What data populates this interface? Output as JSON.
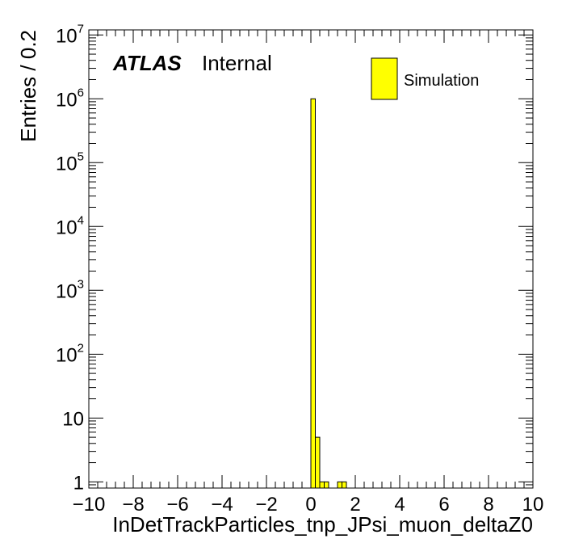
{
  "chart_data": {
    "type": "bar",
    "title": "",
    "xlabel": "InDetTrackParticles_tnp_JPsi_muon_deltaZ0",
    "ylabel": "Entries / 0.2",
    "xlim": [
      -10,
      10
    ],
    "ylim": [
      0.8,
      12000000
    ],
    "yscale": "log",
    "bin_width": 0.2,
    "x_ticks": [
      "−10",
      "−8",
      "−6",
      "−4",
      "−2",
      "0",
      "2",
      "4",
      "6",
      "8",
      "10"
    ],
    "x_tick_values": [
      -10,
      -8,
      -6,
      -4,
      -2,
      0,
      2,
      4,
      6,
      8,
      10
    ],
    "y_ticks": [
      {
        "value": 1,
        "base": "1",
        "exp": ""
      },
      {
        "value": 10,
        "base": "10",
        "exp": ""
      },
      {
        "value": 100,
        "base": "10",
        "exp": "2"
      },
      {
        "value": 1000,
        "base": "10",
        "exp": "3"
      },
      {
        "value": 10000,
        "base": "10",
        "exp": "4"
      },
      {
        "value": 100000,
        "base": "10",
        "exp": "5"
      },
      {
        "value": 1000000,
        "base": "10",
        "exp": "6"
      },
      {
        "value": 10000000,
        "base": "10",
        "exp": "7"
      }
    ],
    "bins": [
      {
        "low": 0.0,
        "high": 0.2,
        "value": 1000000
      },
      {
        "low": 0.2,
        "high": 0.4,
        "value": 5
      },
      {
        "low": 0.4,
        "high": 0.6,
        "value": 1
      },
      {
        "low": 0.6,
        "high": 0.8,
        "value": 1
      },
      {
        "low": 1.2,
        "high": 1.4,
        "value": 1
      },
      {
        "low": 1.4,
        "high": 1.6,
        "value": 1
      }
    ],
    "series": [
      {
        "name": "Simulation",
        "color": "#ffff00"
      }
    ],
    "legend_position": "top-right",
    "grid": false
  },
  "labels": {
    "atlas": "ATLAS",
    "internal": "Internal"
  }
}
